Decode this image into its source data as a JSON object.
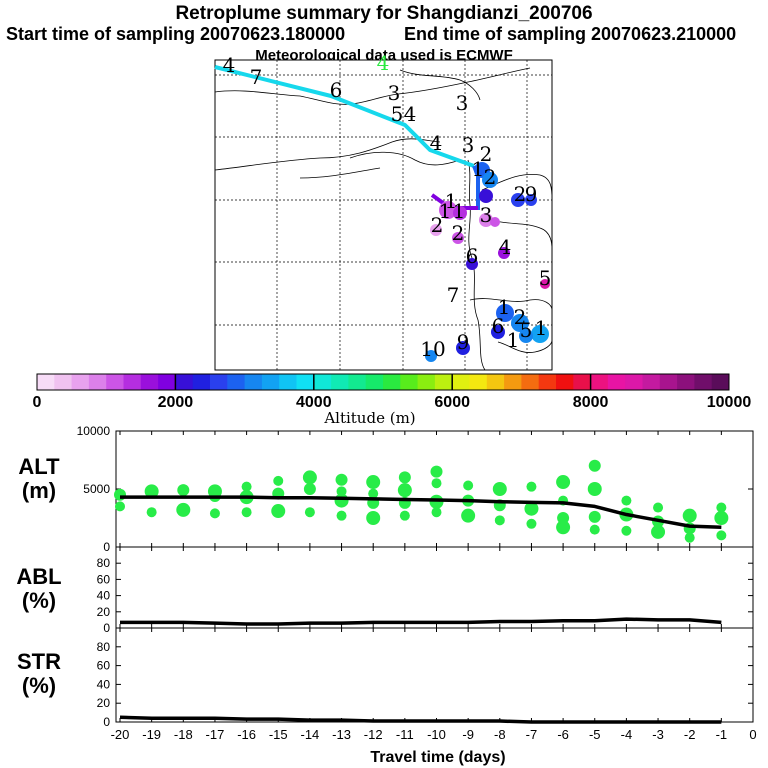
{
  "header": {
    "title": "Retroplume summary for Shangdianzi_200706",
    "start_label": "Start time of sampling 20070623.180000",
    "end_label": "End time of sampling 20070623.210000",
    "met_label": "Meteorological data used is ECMWF"
  },
  "colorbar": {
    "min_label": "0",
    "labels": [
      "0",
      "2000",
      "4000",
      "6000",
      "8000",
      "10000"
    ],
    "axis_label": "Altitude (m)",
    "colors": [
      "#f7dcf7",
      "#f0c2f0",
      "#e8a2ee",
      "#dc80ea",
      "#cc55e6",
      "#b52ee0",
      "#9a10dc",
      "#8000e0",
      "#3810d8",
      "#2020e0",
      "#2a40ee",
      "#1c62f0",
      "#1686f0",
      "#12a2f2",
      "#10c4f4",
      "#10e0f4",
      "#10e8d8",
      "#10eab4",
      "#12ea90",
      "#16ea6a",
      "#2aea40",
      "#58ec1c",
      "#8aee10",
      "#bcf010",
      "#e0f010",
      "#f4e810",
      "#f4c610",
      "#f49a10",
      "#f46c10",
      "#f43810",
      "#f01010",
      "#e8104a",
      "#ec1280",
      "#e814a4",
      "#dc18a8",
      "#c41aa0",
      "#a8148e",
      "#8c107c",
      "#700e6a",
      "#5a0c5a"
    ]
  },
  "map": {
    "trajectory": [
      {
        "x": 215,
        "y": 67
      },
      {
        "x": 331,
        "y": 96
      },
      {
        "x": 405,
        "y": 125
      },
      {
        "x": 430,
        "y": 150
      },
      {
        "x": 474,
        "y": 166
      }
    ],
    "labels": [
      {
        "text": "4",
        "x": 229,
        "y": 72
      },
      {
        "text": "7",
        "x": 256,
        "y": 84
      },
      {
        "text": "6",
        "x": 336,
        "y": 97
      },
      {
        "text": "4",
        "x": 383,
        "y": 70,
        "color": "#2aea40"
      },
      {
        "text": "3",
        "x": 394,
        "y": 100
      },
      {
        "text": "5",
        "x": 397,
        "y": 121
      },
      {
        "text": "4",
        "x": 410,
        "y": 121
      },
      {
        "text": "3",
        "x": 462,
        "y": 110
      },
      {
        "text": "4",
        "x": 436,
        "y": 150
      },
      {
        "text": "3",
        "x": 468,
        "y": 152
      },
      {
        "text": "2",
        "x": 486,
        "y": 161
      },
      {
        "text": "1",
        "x": 478,
        "y": 176
      },
      {
        "text": "2",
        "x": 490,
        "y": 184
      },
      {
        "text": "2",
        "x": 520,
        "y": 201
      },
      {
        "text": "9",
        "x": 531,
        "y": 201
      },
      {
        "text": "1",
        "x": 451,
        "y": 208
      },
      {
        "text": "1",
        "x": 445,
        "y": 218
      },
      {
        "text": "1",
        "x": 459,
        "y": 218
      },
      {
        "text": "2",
        "x": 437,
        "y": 232
      },
      {
        "text": "2",
        "x": 458,
        "y": 240
      },
      {
        "text": "3",
        "x": 486,
        "y": 222
      },
      {
        "text": "4",
        "x": 505,
        "y": 254
      },
      {
        "text": "6",
        "x": 472,
        "y": 263
      },
      {
        "text": "5",
        "x": 545,
        "y": 285
      },
      {
        "text": "7",
        "x": 453,
        "y": 302
      },
      {
        "text": "1",
        "x": 504,
        "y": 314
      },
      {
        "text": "2",
        "x": 520,
        "y": 324
      },
      {
        "text": "6",
        "x": 498,
        "y": 333
      },
      {
        "text": "1",
        "x": 513,
        "y": 347
      },
      {
        "text": "5",
        "x": 526,
        "y": 337
      },
      {
        "text": "1",
        "x": 541,
        "y": 335
      },
      {
        "text": "9",
        "x": 463,
        "y": 349
      },
      {
        "text": "10",
        "x": 433,
        "y": 356
      }
    ]
  },
  "panels": {
    "alt": {
      "label": "ALT",
      "unit": "(m)"
    },
    "abl": {
      "label": "ABL",
      "unit": "(%)"
    },
    "str": {
      "label": "STR",
      "unit": "(%)"
    }
  },
  "chart_data": [
    {
      "type": "line",
      "title": "ALT",
      "ylabel": "(m)",
      "xlabel": "Travel time (days)",
      "x": [
        -20,
        -19,
        -18,
        -17,
        -16,
        -15,
        -14,
        -13,
        -12,
        -11,
        -10,
        -9,
        -8,
        -7,
        -6,
        -5,
        -4,
        -3,
        -2,
        -1
      ],
      "series": [
        {
          "name": "mean altitude",
          "values": [
            4300,
            4300,
            4300,
            4300,
            4300,
            4250,
            4250,
            4200,
            4150,
            4100,
            4050,
            4000,
            3900,
            3850,
            3800,
            3500,
            2800,
            2300,
            1800,
            1700
          ]
        }
      ],
      "scatter": [
        {
          "x": -20,
          "y": [
            3500,
            4500
          ]
        },
        {
          "x": -19,
          "y": [
            3000,
            4800
          ]
        },
        {
          "x": -18,
          "y": [
            3200,
            4900
          ]
        },
        {
          "x": -17,
          "y": [
            2900,
            4400,
            4800
          ]
        },
        {
          "x": -16,
          "y": [
            3000,
            4300,
            5200
          ]
        },
        {
          "x": -15,
          "y": [
            3100,
            4600,
            5700
          ]
        },
        {
          "x": -14,
          "y": [
            3000,
            5000,
            6000
          ]
        },
        {
          "x": -13,
          "y": [
            2700,
            4000,
            4800,
            5800
          ]
        },
        {
          "x": -12,
          "y": [
            2500,
            3800,
            4600,
            5600
          ]
        },
        {
          "x": -11,
          "y": [
            2700,
            3800,
            4900,
            6000
          ]
        },
        {
          "x": -10,
          "y": [
            3000,
            3900,
            5500,
            6500
          ]
        },
        {
          "x": -9,
          "y": [
            2700,
            4000,
            5300
          ]
        },
        {
          "x": -8,
          "y": [
            2300,
            3600,
            5000
          ]
        },
        {
          "x": -7,
          "y": [
            2000,
            3300,
            5200
          ]
        },
        {
          "x": -6,
          "y": [
            1700,
            2500,
            4000,
            5600
          ]
        },
        {
          "x": -5,
          "y": [
            1500,
            2600,
            5000,
            7000
          ]
        },
        {
          "x": -4,
          "y": [
            1400,
            2800,
            4000
          ]
        },
        {
          "x": -3,
          "y": [
            1300,
            2200,
            3400
          ]
        },
        {
          "x": -2,
          "y": [
            800,
            1600,
            2700
          ]
        },
        {
          "x": -1,
          "y": [
            1000,
            2500,
            3400
          ]
        }
      ],
      "ylim": [
        0,
        10000
      ],
      "yticks": [
        "0",
        "5000",
        "10000"
      ],
      "xlim": [
        -20,
        0
      ]
    },
    {
      "type": "line",
      "title": "ABL",
      "ylabel": "(%)",
      "x": [
        -20,
        -19,
        -18,
        -17,
        -16,
        -15,
        -14,
        -13,
        -12,
        -11,
        -10,
        -9,
        -8,
        -7,
        -6,
        -5,
        -4,
        -3,
        -2,
        -1
      ],
      "series": [
        {
          "name": "ABL fraction",
          "values": [
            7,
            7,
            7,
            6,
            5,
            5,
            6,
            6,
            7,
            7,
            7,
            7,
            8,
            8,
            9,
            9,
            11,
            10,
            10,
            7
          ]
        }
      ],
      "ylim": [
        0,
        100
      ],
      "yticks": [
        "0",
        "20",
        "40",
        "60",
        "80"
      ]
    },
    {
      "type": "line",
      "title": "STR",
      "ylabel": "(%)",
      "x": [
        -20,
        -19,
        -18,
        -17,
        -16,
        -15,
        -14,
        -13,
        -12,
        -11,
        -10,
        -9,
        -8,
        -7,
        -6,
        -5,
        -4,
        -3,
        -2,
        -1
      ],
      "series": [
        {
          "name": "STR fraction",
          "values": [
            5,
            4,
            4,
            4,
            3,
            3,
            2,
            2,
            1,
            1,
            1,
            1,
            1,
            0,
            0,
            0,
            0,
            0,
            0,
            0
          ]
        }
      ],
      "ylim": [
        0,
        100
      ],
      "yticks": [
        "0",
        "20",
        "40",
        "60",
        "80"
      ],
      "xticks": [
        "-20",
        "-19",
        "-18",
        "-17",
        "-16",
        "-15",
        "-14",
        "-13",
        "-12",
        "-11",
        "-10",
        "-9",
        "-8",
        "-7",
        "-6",
        "-5",
        "-4",
        "-3",
        "-2",
        "-1",
        "0"
      ]
    }
  ]
}
